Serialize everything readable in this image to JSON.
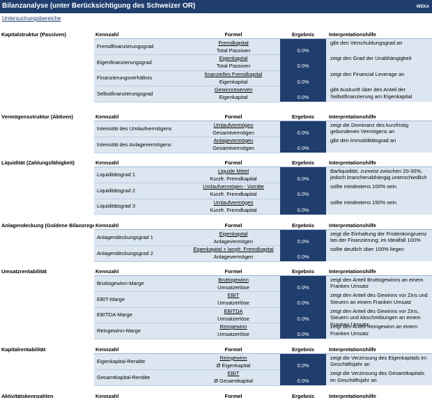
{
  "header": {
    "title": "Bilanzanalyse (unter Berücksichtigung des Schweizer OR)",
    "logo": "WEKA",
    "link": "Untersuchungsbereiche"
  },
  "columns": [
    "Kennzahl",
    "Formel",
    "Ergebnis",
    "Interpretationshilfe"
  ],
  "sections": [
    {
      "label": "Kapitalstruktur (Passiven)",
      "rows": [
        {
          "name": "Fremdfinanzierungsgrad",
          "numerator": "Fremdkapital",
          "denominator": "Total Passiven",
          "result": "0.0%",
          "interpretation": [
            "gibt den Verschuldungsgrad an"
          ]
        },
        {
          "name": "Eigenfinanzierungsgrad",
          "numerator": "Eigenkapital",
          "denominator": "Total Passiven",
          "result": "0.0%",
          "interpretation": [
            "zeigt den Grad der Unabhängigkeit"
          ]
        },
        {
          "name": "Finanzierungsverhältnis",
          "numerator": "finanzielles Fremdkapital",
          "denominator": "Eigenkapital",
          "result": "0.0%",
          "interpretation": [
            "zeigt den Financial Leverage an"
          ]
        },
        {
          "name": "Selbstfinanzierungsgrad",
          "numerator": "Gewinnreserven",
          "denominator": "Eigenkapital",
          "result": "0.0%",
          "interpretation": [
            "gibt Auskunft über den Anteil der",
            "Selbstfinanzierung am Eigenkapital"
          ]
        }
      ]
    },
    {
      "label": "Vermögensstruktur (Aktiven)",
      "rows": [
        {
          "name": "Intensität des Umlaufvermögens",
          "numerator": "Umlaufvermögen",
          "denominator": "Gesamtvermögen",
          "result": "0.0%",
          "interpretation": [
            "zeigt die Dominanz des kurzfristig",
            "gebundenen Vermögens an"
          ]
        },
        {
          "name": "Intensität des Anlagevermögens",
          "numerator": "Anlagevermögen",
          "denominator": "Gesamtvermögen",
          "result": "0.0%",
          "interpretation": [
            "gibt den Immobilitätsgrad an"
          ]
        }
      ]
    },
    {
      "label": "Liquidität (Zahlungsfähigkeit)",
      "rows": [
        {
          "name": "Liquiditätsgrad 1",
          "numerator": "Liquide Mittel",
          "denominator": "Kurzfr. Fremdkapital",
          "result": "0.0%",
          "interpretation": [
            "Barliquidität, zumeist zwischen 20-30%,",
            "jedoch branchenabhängig unterschiedlich"
          ]
        },
        {
          "name": "Liquiditätsgrad 2",
          "numerator": "Umlaufvermögen - Vorräte",
          "denominator": "Kurzfr. Fremdkapital",
          "result": "0.0%",
          "interpretation": [
            "sollte mindestens 100% sein"
          ]
        },
        {
          "name": "Liquiditätsgrad 3",
          "numerator": "Umlaufvermögen",
          "denominator": "Kurzfr. Fremdkapital",
          "result": "0.0%",
          "interpretation": [
            "sollte mindestens 150% sein"
          ]
        }
      ]
    },
    {
      "label": "Anlagendeckung (Goldene Bilanzrege",
      "rows": [
        {
          "name": "Anlagendeckungsgrad 1",
          "numerator": "Eigenkapital",
          "denominator": "Anlagevermögen",
          "result": "0.0%",
          "interpretation": [
            "zeigt die Einhaltung der Fristenkongruenz",
            "bei der Finanzierung; im Idealfall 100%"
          ]
        },
        {
          "name": "Anlagendeckungsgrad 2",
          "numerator": "Eigenkapital + langfr. Fremdkapital",
          "denominator": "Anlagevermögen",
          "result": "0.0%",
          "interpretation": [
            "sollte deutlich über 100% liegen"
          ]
        }
      ]
    },
    {
      "label": "Umsatzrentabilität",
      "rows": [
        {
          "name": "Bruttogewinn-Marge",
          "numerator": "Bruttogewinn",
          "denominator": "Umsatzerlöse",
          "result": "0.0%",
          "interpretation": [
            "zeigt den Anteil Bruttogewinns an einem",
            "Franken Umsatz"
          ]
        },
        {
          "name": "EBIT-Marge",
          "numerator": "EBIT",
          "denominator": "Umsatzerlöse",
          "result": "0.0%",
          "interpretation": [
            "zeigt den Anteil des Gewinns vor Zins und",
            "Steuern an einem Franken Umsatz"
          ]
        },
        {
          "name": "EBITDA-Marge",
          "numerator": "EBITDA",
          "denominator": "Umsatzerlöse",
          "result": "0.0%",
          "interpretation": [
            "zeigt den Anteil des Gewinns vor Zins,",
            "Steuern und Abschreibungen an einem",
            "Franken Umsatz"
          ]
        },
        {
          "name": "Reingewinn-Marge",
          "numerator": "Reingewinn",
          "denominator": "Umsatzerlöse",
          "result": "0.0%",
          "interpretation": [
            "zeigt den Anteil Reingewinn an einem",
            "Franken Umsatz"
          ]
        }
      ]
    },
    {
      "label": "Kapitalrentabilität",
      "rows": [
        {
          "name": "Eigenkapital-Rendite",
          "numerator": "Reingewinn",
          "denominator": "Ø Eigenkapital",
          "result": "0.0%",
          "interpretation": [
            "zeigt die Verzinsung des Eigenkapitals im",
            "Geschäftsjahr an"
          ]
        },
        {
          "name": "Gesamtkapital-Rendite",
          "numerator": "EBIT",
          "denominator": "Ø Gesamtkapital",
          "result": "0.0%",
          "interpretation": [
            "zeigt die Verzinsung des Gesamtkapitals",
            "im Geschäftsjahr an"
          ]
        }
      ]
    },
    {
      "label": "Aktivitätskennzahlen",
      "rows": []
    }
  ]
}
